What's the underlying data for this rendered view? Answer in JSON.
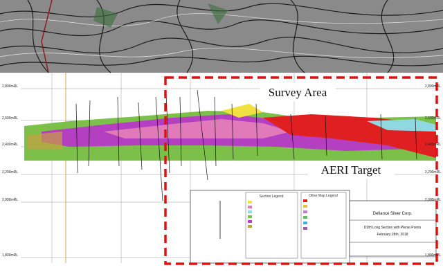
{
  "annotations": {
    "survey_area": "Survey Area",
    "aeri_target": "AERI Target"
  },
  "section": {
    "elevation_labels": [
      "2,800mRL",
      "2,600mRL",
      "2,400mRL",
      "2,200mRL",
      "2,000mRL",
      "1,800mRL"
    ]
  },
  "legends": {
    "section_legend": "Section Legend",
    "other_legend": "Other Map Legend"
  },
  "title_block": {
    "company": "Defiance Silver Corp.",
    "title": "DDH Long Section with Plenia Points",
    "date": "February 28th, 2018"
  }
}
